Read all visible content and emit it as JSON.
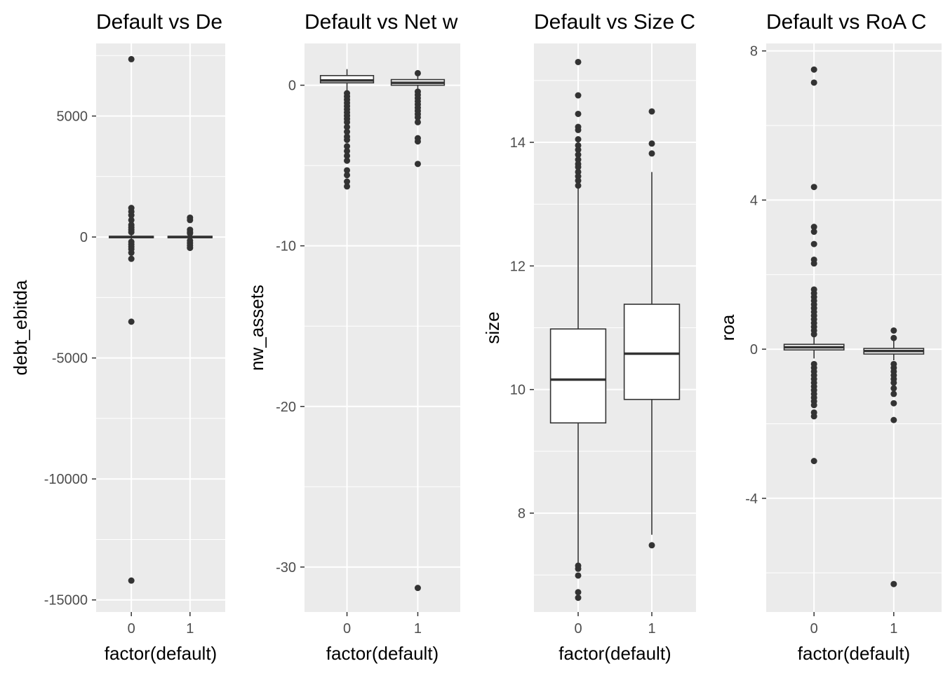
{
  "chart_data": [
    {
      "type": "box",
      "title": "Default vs De",
      "xlabel": "factor(default)",
      "ylabel": "debt_ebitda",
      "categories": [
        "0",
        "1"
      ],
      "yticks": [
        5000,
        0,
        -5000,
        -10000,
        -15000
      ],
      "ytick_labels": [
        "5000",
        "0",
        "-5000",
        "-10000",
        "-15000"
      ],
      "ylim": [
        -15500,
        8000
      ],
      "boxes": [
        {
          "category": "0",
          "q1": -30,
          "median": 0,
          "q3": 30,
          "whisker_low": -100,
          "whisker_high": 100,
          "outliers": [
            7350,
            1200,
            1050,
            900,
            700,
            500,
            400,
            300,
            200,
            -200,
            -300,
            -400,
            -500,
            -650,
            -900,
            -3500,
            -14200
          ]
        },
        {
          "category": "1",
          "q1": -30,
          "median": 0,
          "q3": 30,
          "whisker_low": -100,
          "whisker_high": 100,
          "outliers": [
            800,
            700,
            300,
            200,
            150,
            -150,
            -250,
            -350,
            -450
          ]
        }
      ]
    },
    {
      "type": "box",
      "title": "Default vs Net w",
      "xlabel": "factor(default)",
      "ylabel": "nw_assets",
      "categories": [
        "0",
        "1"
      ],
      "yticks": [
        0,
        -10,
        -20,
        -30
      ],
      "ytick_labels": [
        "0",
        "-10",
        "-20",
        "-30"
      ],
      "ylim": [
        -32.8,
        2.6
      ],
      "boxes": [
        {
          "category": "0",
          "q1": 0.15,
          "median": 0.3,
          "q3": 0.6,
          "whisker_low": -0.4,
          "whisker_high": 1.0,
          "outliers": [
            -0.5,
            -0.7,
            -0.9,
            -1.1,
            -1.3,
            -1.5,
            -1.7,
            -1.9,
            -2.1,
            -2.3,
            -2.6,
            -2.9,
            -3.2,
            -3.4,
            -3.8,
            -4.1,
            -4.4,
            -4.7,
            -5.3,
            -5.6,
            -6.0,
            -6.3
          ]
        },
        {
          "category": "1",
          "q1": 0.0,
          "median": 0.15,
          "q3": 0.35,
          "whisker_low": -0.3,
          "whisker_high": 0.85,
          "outliers": [
            0.75,
            -0.4,
            -0.6,
            -0.8,
            -1.0,
            -1.2,
            -1.4,
            -1.6,
            -1.8,
            -2.0,
            -2.3,
            -3.3,
            -3.5,
            -4.9,
            -31.3
          ]
        }
      ]
    },
    {
      "type": "box",
      "title": "Default vs Size C",
      "xlabel": "factor(default)",
      "ylabel": "size",
      "categories": [
        "0",
        "1"
      ],
      "yticks": [
        14,
        12,
        10,
        8
      ],
      "ytick_labels": [
        "14",
        "12",
        "10",
        "8"
      ],
      "ylim": [
        6.4,
        15.6
      ],
      "boxes": [
        {
          "category": "0",
          "q1": 9.46,
          "median": 10.16,
          "q3": 10.98,
          "whisker_low": 7.2,
          "whisker_high": 13.26,
          "outliers": [
            15.3,
            14.76,
            14.46,
            14.25,
            14.2,
            14.05,
            13.95,
            13.88,
            13.8,
            13.72,
            13.65,
            13.6,
            13.52,
            13.45,
            13.38,
            13.3,
            7.15,
            7.1,
            6.99,
            6.72,
            6.63
          ]
        },
        {
          "category": "1",
          "q1": 9.84,
          "median": 10.58,
          "q3": 11.38,
          "whisker_low": 7.65,
          "whisker_high": 13.52,
          "outliers": [
            14.5,
            13.98,
            13.82,
            7.48
          ]
        }
      ]
    },
    {
      "type": "box",
      "title": "Default vs RoA C",
      "xlabel": "factor(default)",
      "ylabel": "roa",
      "categories": [
        "0",
        "1"
      ],
      "yticks": [
        8,
        4,
        0,
        -4
      ],
      "ytick_labels": [
        "8",
        "4",
        "0",
        "-4"
      ],
      "ylim": [
        -7.05,
        8.2
      ],
      "boxes": [
        {
          "category": "0",
          "q1": -0.02,
          "median": 0.05,
          "q3": 0.13,
          "whisker_low": -0.25,
          "whisker_high": 0.32,
          "outliers": [
            7.5,
            7.15,
            4.35,
            3.28,
            3.15,
            2.82,
            2.4,
            2.3,
            1.6,
            1.5,
            1.4,
            1.3,
            1.2,
            1.1,
            1.0,
            0.9,
            0.8,
            0.7,
            0.6,
            0.5,
            0.4,
            -0.4,
            -0.5,
            -0.6,
            -0.7,
            -0.8,
            -0.9,
            -1.0,
            -1.1,
            -1.2,
            -1.3,
            -1.4,
            -1.5,
            -1.7,
            -1.8,
            -3.0
          ]
        },
        {
          "category": "1",
          "q1": -0.13,
          "median": -0.05,
          "q3": 0.02,
          "whisker_low": -0.3,
          "whisker_high": 0.25,
          "outliers": [
            0.5,
            0.3,
            -0.4,
            -0.5,
            -0.6,
            -0.7,
            -0.8,
            -0.9,
            -1.05,
            -1.2,
            -1.45,
            -1.9,
            -6.3
          ]
        }
      ]
    }
  ]
}
